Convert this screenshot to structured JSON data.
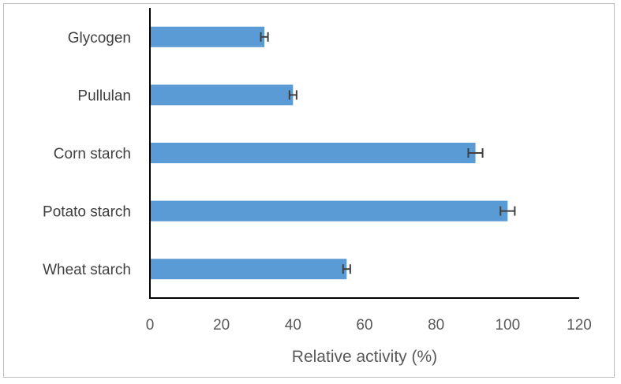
{
  "chart_data": {
    "type": "bar",
    "orientation": "horizontal",
    "categories": [
      "Glycogen",
      "Pullulan",
      "Corn starch",
      "Potato starch",
      "Wheat starch"
    ],
    "values": [
      32,
      40,
      91,
      100,
      55
    ],
    "errors": [
      1,
      1,
      2,
      2,
      1
    ],
    "xlabel": "Relative activity (%)",
    "ylabel": "",
    "xlim": [
      0,
      120
    ],
    "xticks": [
      0,
      20,
      40,
      60,
      80,
      100,
      120
    ],
    "bar_color": "#5b9bd5",
    "error_color": "#404040",
    "grid": false
  }
}
